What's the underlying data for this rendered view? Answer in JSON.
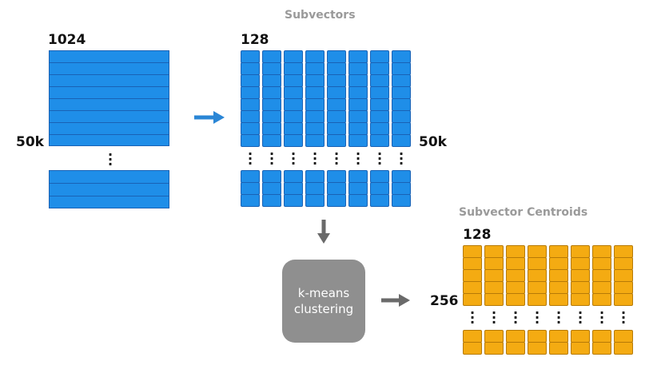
{
  "labels": {
    "input_dim": "1024",
    "input_rows": "50k",
    "subvectors_title": "Subvectors",
    "sub_dim": "128",
    "sub_rows": "50k",
    "centroids_title": "Subvector Centroids",
    "centroid_dim": "128",
    "centroid_rows": "256",
    "cluster_line1": "k-means",
    "cluster_line2": "clustering"
  },
  "colors": {
    "blue": "#1f8ee8",
    "blue_border": "#1a62b5",
    "orange": "#f4ab12",
    "orange_border": "#b67a07",
    "gray_box": "#8f8f8f",
    "arrow_blue": "#2a86d6",
    "arrow_gray": "#6a6a6a"
  },
  "icons": {
    "arrow_right": "arrow-right-icon",
    "arrow_down": "arrow-down-icon",
    "ellipsis": "vertical-ellipsis-icon"
  }
}
